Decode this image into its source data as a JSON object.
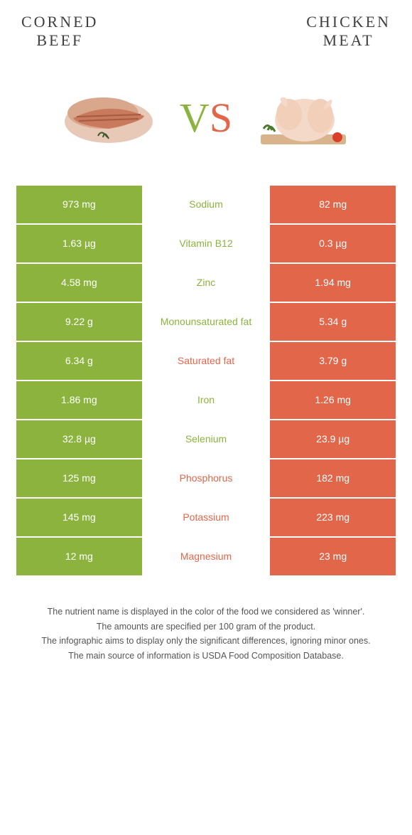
{
  "colors": {
    "green": "#8bb33d",
    "orange": "#e2664a",
    "text_mid_green": "#8bb33d",
    "text_mid_orange": "#e2664a"
  },
  "header": {
    "left_title": "CORNED\nBEEF",
    "right_title": "CHICKEN\nMEAT"
  },
  "vs": {
    "v": "V",
    "s": "S"
  },
  "rows": [
    {
      "left": "973 mg",
      "label": "Sodium",
      "right": "82 mg",
      "winner": "left"
    },
    {
      "left": "1.63 µg",
      "label": "Vitamin B12",
      "right": "0.3 µg",
      "winner": "left"
    },
    {
      "left": "4.58 mg",
      "label": "Zinc",
      "right": "1.94 mg",
      "winner": "left"
    },
    {
      "left": "9.22 g",
      "label": "Monounsaturated fat",
      "right": "5.34 g",
      "winner": "left"
    },
    {
      "left": "6.34 g",
      "label": "Saturated fat",
      "right": "3.79 g",
      "winner": "right"
    },
    {
      "left": "1.86 mg",
      "label": "Iron",
      "right": "1.26 mg",
      "winner": "left"
    },
    {
      "left": "32.8 µg",
      "label": "Selenium",
      "right": "23.9 µg",
      "winner": "left"
    },
    {
      "left": "125 mg",
      "label": "Phosphorus",
      "right": "182 mg",
      "winner": "right"
    },
    {
      "left": "145 mg",
      "label": "Potassium",
      "right": "223 mg",
      "winner": "right"
    },
    {
      "left": "12 mg",
      "label": "Magnesium",
      "right": "23 mg",
      "winner": "right"
    }
  ],
  "footer": {
    "line1": "The nutrient name is displayed in the color of the food we considered as 'winner'.",
    "line2": "The amounts are specified per 100 gram of the product.",
    "line3": "The infographic aims to display only the significant differences, ignoring minor ones.",
    "line4": "The main source of information is USDA Food Composition Database."
  }
}
